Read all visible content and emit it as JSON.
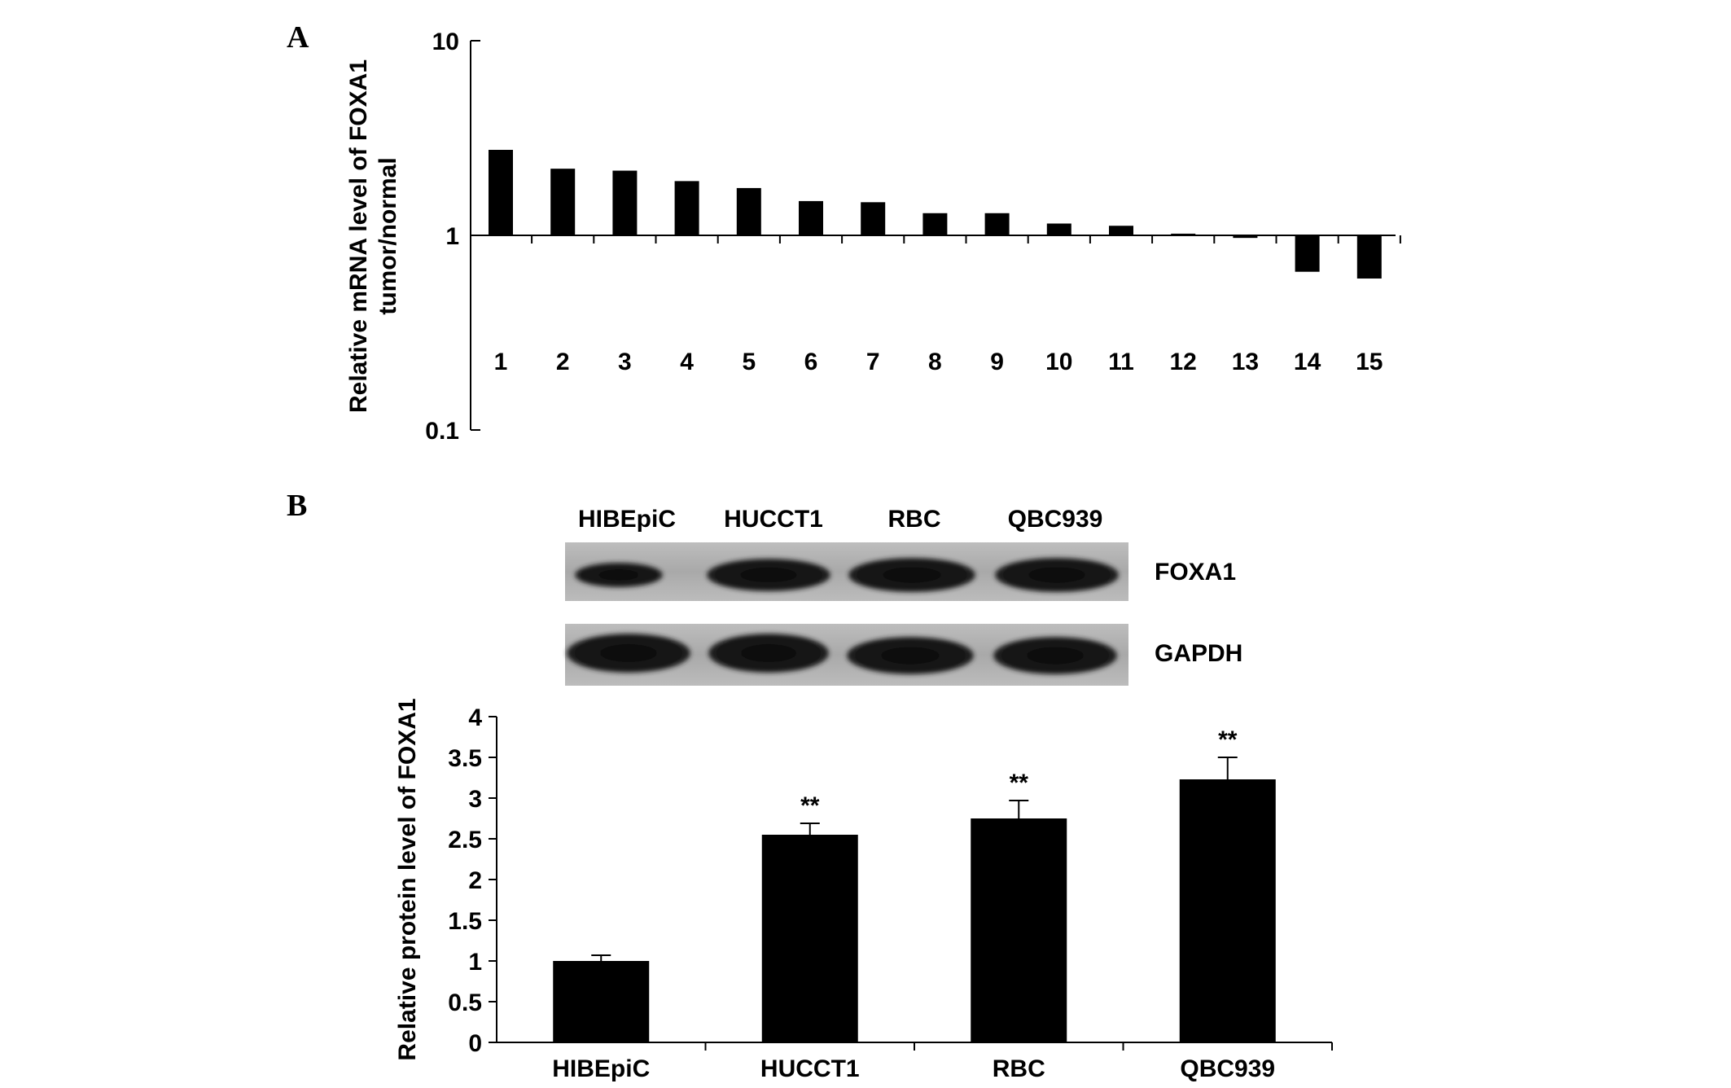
{
  "panels": {
    "a_label": "A",
    "b_label": "B"
  },
  "blot": {
    "lanes": [
      "HIBEpiC",
      "HUCCT1",
      "RBC",
      "QBC939"
    ],
    "rows": [
      "FOXA1",
      "GAPDH"
    ]
  },
  "chart_data": [
    {
      "type": "bar",
      "panel": "A",
      "scale": "log",
      "baseline": 1,
      "ylabel_lines": [
        "Relative mRNA level of FOXA1",
        "tumor/normal"
      ],
      "ylim": [
        0.1,
        10
      ],
      "yticks": [
        {
          "value": 10,
          "label": "10"
        },
        {
          "value": 1,
          "label": "1"
        },
        {
          "value": 0.1,
          "label": "0.1"
        }
      ],
      "categories": [
        "1",
        "2",
        "3",
        "4",
        "5",
        "6",
        "7",
        "8",
        "9",
        "10",
        "11",
        "12",
        "13",
        "14",
        "15"
      ],
      "values": [
        2.75,
        2.2,
        2.15,
        1.9,
        1.75,
        1.5,
        1.48,
        1.3,
        1.3,
        1.15,
        1.12,
        1.02,
        0.97,
        0.65,
        0.6
      ]
    },
    {
      "type": "bar",
      "panel": "B",
      "ylabel": "Relative protein level of FOXA1",
      "ylim": [
        0,
        4
      ],
      "yticks": [
        "0",
        "0.5",
        "1",
        "1.5",
        "2",
        "2.5",
        "3",
        "3.5",
        "4"
      ],
      "categories": [
        "HIBEpiC",
        "HUCCT1",
        "RBC",
        "QBC939"
      ],
      "values": [
        1.0,
        2.55,
        2.75,
        3.23
      ],
      "errors": [
        0.07,
        0.14,
        0.22,
        0.27
      ],
      "annotations": [
        "",
        "**",
        "**",
        "**"
      ]
    }
  ]
}
